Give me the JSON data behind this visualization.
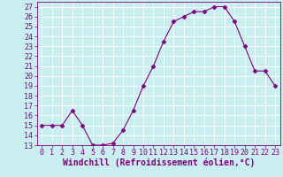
{
  "x": [
    0,
    1,
    2,
    3,
    4,
    5,
    6,
    7,
    8,
    9,
    10,
    11,
    12,
    13,
    14,
    15,
    16,
    17,
    18,
    19,
    20,
    21,
    22,
    23
  ],
  "y": [
    15,
    15,
    15,
    16.5,
    15,
    13,
    13,
    13.2,
    14.5,
    16.5,
    19,
    21,
    23.5,
    25.5,
    26,
    26.5,
    26.5,
    27,
    27,
    25.5,
    23,
    20.5,
    20.5,
    19
  ],
  "line_color": "#800080",
  "marker": "D",
  "marker_size": 2.5,
  "bg_color": "#c8eef0",
  "grid_color": "#b0dde0",
  "xlabel": "Windchill (Refroidissement éolien,°C)",
  "xlabel_fontsize": 7,
  "tick_fontsize": 6,
  "ylim": [
    13,
    27.5
  ],
  "yticks": [
    13,
    14,
    15,
    16,
    17,
    18,
    19,
    20,
    21,
    22,
    23,
    24,
    25,
    26,
    27
  ],
  "xlim": [
    -0.5,
    23.5
  ],
  "xticks": [
    0,
    1,
    2,
    3,
    4,
    5,
    6,
    7,
    8,
    9,
    10,
    11,
    12,
    13,
    14,
    15,
    16,
    17,
    18,
    19,
    20,
    21,
    22,
    23
  ],
  "figsize": [
    3.2,
    2.0
  ],
  "dpi": 100
}
